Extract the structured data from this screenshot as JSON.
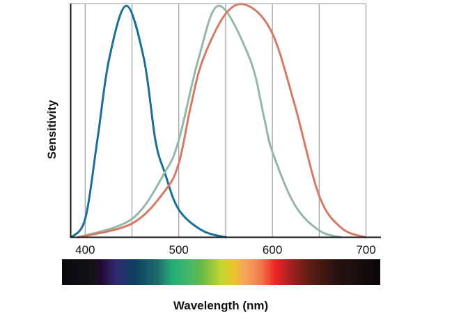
{
  "chart_data": {
    "type": "line",
    "title": "",
    "xlabel": "Wavelength (nm)",
    "ylabel": "Sensitivity",
    "xlim": [
      385,
      716
    ],
    "ylim": [
      0,
      1
    ],
    "x_ticks": [
      400,
      500,
      600,
      700
    ],
    "x_tick_labels": [
      "400",
      "500",
      "600",
      "700"
    ],
    "gridlines_x": [
      400,
      450,
      500,
      550,
      600,
      650,
      700
    ],
    "grid": "vertical",
    "y_ticks": [],
    "series": [
      {
        "color": "#1a6e9a",
        "points": [
          [
            385,
            0
          ],
          [
            400,
            0.08
          ],
          [
            413,
            0.42
          ],
          [
            425.6,
            0.77
          ],
          [
            444,
            1.0
          ],
          [
            462.8,
            0.77
          ],
          [
            475,
            0.42
          ],
          [
            485,
            0.28
          ],
          [
            500,
            0.12
          ],
          [
            525,
            0.03
          ],
          [
            551,
            0
          ]
        ]
      },
      {
        "color": "#93b8a6",
        "points": [
          [
            392,
            0
          ],
          [
            450,
            0.08
          ],
          [
            485,
            0.28
          ],
          [
            500,
            0.42
          ],
          [
            521,
            0.77
          ],
          [
            543,
            1.0
          ],
          [
            576,
            0.77
          ],
          [
            591,
            0.52
          ],
          [
            600,
            0.37
          ],
          [
            624,
            0.14
          ],
          [
            650,
            0.03
          ],
          [
            674,
            0
          ]
        ]
      },
      {
        "color": "#d47a66",
        "points": [
          [
            392,
            0
          ],
          [
            450,
            0.06
          ],
          [
            485,
            0.2
          ],
          [
            500,
            0.32
          ],
          [
            513,
            0.57
          ],
          [
            526,
            0.77
          ],
          [
            551,
            0.97
          ],
          [
            574,
            1.0
          ],
          [
            600,
            0.88
          ],
          [
            624,
            0.57
          ],
          [
            650,
            0.18
          ],
          [
            674,
            0.04
          ],
          [
            700,
            0
          ]
        ]
      }
    ],
    "spectrum_bar": {
      "stops": [
        [
          0,
          "#0a0a0e"
        ],
        [
          0.1,
          "#151218"
        ],
        [
          0.12,
          "#200a30"
        ],
        [
          0.17,
          "#2e2a70"
        ],
        [
          0.23,
          "#0b3f5e"
        ],
        [
          0.3,
          "#1e6c6c"
        ],
        [
          0.35,
          "#24b077"
        ],
        [
          0.4,
          "#44b76a"
        ],
        [
          0.44,
          "#6ab845"
        ],
        [
          0.5,
          "#c6d632"
        ],
        [
          0.54,
          "#ecc32a"
        ],
        [
          0.57,
          "#f6a85a"
        ],
        [
          0.62,
          "#f08050"
        ],
        [
          0.67,
          "#ee2626"
        ],
        [
          0.72,
          "#a02020"
        ],
        [
          0.78,
          "#5a1c10"
        ],
        [
          0.86,
          "#2a1210"
        ],
        [
          1,
          "#0a0808"
        ]
      ]
    }
  }
}
